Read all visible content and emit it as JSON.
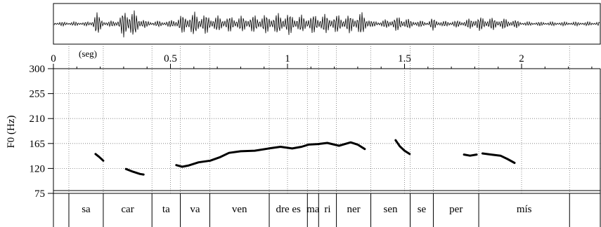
{
  "chart_data": {
    "type": "line",
    "time_axis": {
      "unit_label": "(seg)",
      "range": [
        0,
        2.3
      ],
      "ticks": [
        {
          "value": 0,
          "label": "0"
        },
        {
          "value": 0.5,
          "label": "0.5"
        },
        {
          "value": 1,
          "label": "1"
        },
        {
          "value": 1.5,
          "label": "1.5"
        },
        {
          "value": 2,
          "label": "2"
        }
      ]
    },
    "ylabel": "F0 (Hz)",
    "ylim": [
      75,
      300
    ],
    "yticks": [
      {
        "value": 75,
        "label": "75"
      },
      {
        "value": 120,
        "label": "120"
      },
      {
        "value": 165,
        "label": "165"
      },
      {
        "value": 210,
        "label": "210"
      },
      {
        "value": 255,
        "label": "255"
      },
      {
        "value": 300,
        "label": "300"
      }
    ],
    "grid": true,
    "syllables": [
      {
        "label": "sa",
        "start": 0.066,
        "end": 0.213
      },
      {
        "label": "car",
        "start": 0.213,
        "end": 0.421
      },
      {
        "label": "ta",
        "start": 0.421,
        "end": 0.542
      },
      {
        "label": "va",
        "start": 0.542,
        "end": 0.668
      },
      {
        "label": "ven",
        "start": 0.668,
        "end": 0.922
      },
      {
        "label": "dre es",
        "start": 0.922,
        "end": 1.085
      },
      {
        "label": "ma",
        "start": 1.085,
        "end": 1.133
      },
      {
        "label": "ri",
        "start": 1.133,
        "end": 1.209
      },
      {
        "label": "ner",
        "start": 1.209,
        "end": 1.356
      },
      {
        "label": "sen",
        "start": 1.356,
        "end": 1.524
      },
      {
        "label": "se",
        "start": 1.524,
        "end": 1.623
      },
      {
        "label": "per",
        "start": 1.623,
        "end": 1.817
      },
      {
        "label": "mís",
        "start": 1.817,
        "end": 2.205
      }
    ],
    "series": [
      {
        "points": [
          [
            0.18,
            146
          ],
          [
            0.195,
            141
          ],
          [
            0.213,
            134
          ]
        ]
      },
      {
        "points": [
          [
            0.31,
            119
          ],
          [
            0.34,
            114
          ],
          [
            0.37,
            110
          ],
          [
            0.385,
            109
          ]
        ]
      },
      {
        "points": [
          [
            0.525,
            126
          ],
          [
            0.55,
            123
          ],
          [
            0.575,
            125
          ],
          [
            0.62,
            131
          ],
          [
            0.67,
            134
          ],
          [
            0.71,
            140
          ],
          [
            0.75,
            148
          ],
          [
            0.8,
            151
          ],
          [
            0.86,
            152
          ],
          [
            0.92,
            156
          ],
          [
            0.97,
            159
          ],
          [
            1.02,
            156
          ],
          [
            1.06,
            159
          ],
          [
            1.09,
            163
          ],
          [
            1.13,
            164
          ],
          [
            1.17,
            166
          ],
          [
            1.22,
            161
          ],
          [
            1.27,
            167
          ],
          [
            1.3,
            163
          ],
          [
            1.33,
            155
          ]
        ]
      },
      {
        "points": [
          [
            1.462,
            171
          ],
          [
            1.48,
            160
          ],
          [
            1.5,
            152
          ],
          [
            1.522,
            146
          ]
        ]
      },
      {
        "points": [
          [
            1.754,
            145
          ],
          [
            1.78,
            143
          ],
          [
            1.808,
            145
          ]
        ]
      },
      {
        "points": [
          [
            1.833,
            147
          ],
          [
            1.87,
            145
          ],
          [
            1.91,
            143
          ],
          [
            1.94,
            137
          ],
          [
            1.97,
            130
          ]
        ]
      }
    ]
  }
}
